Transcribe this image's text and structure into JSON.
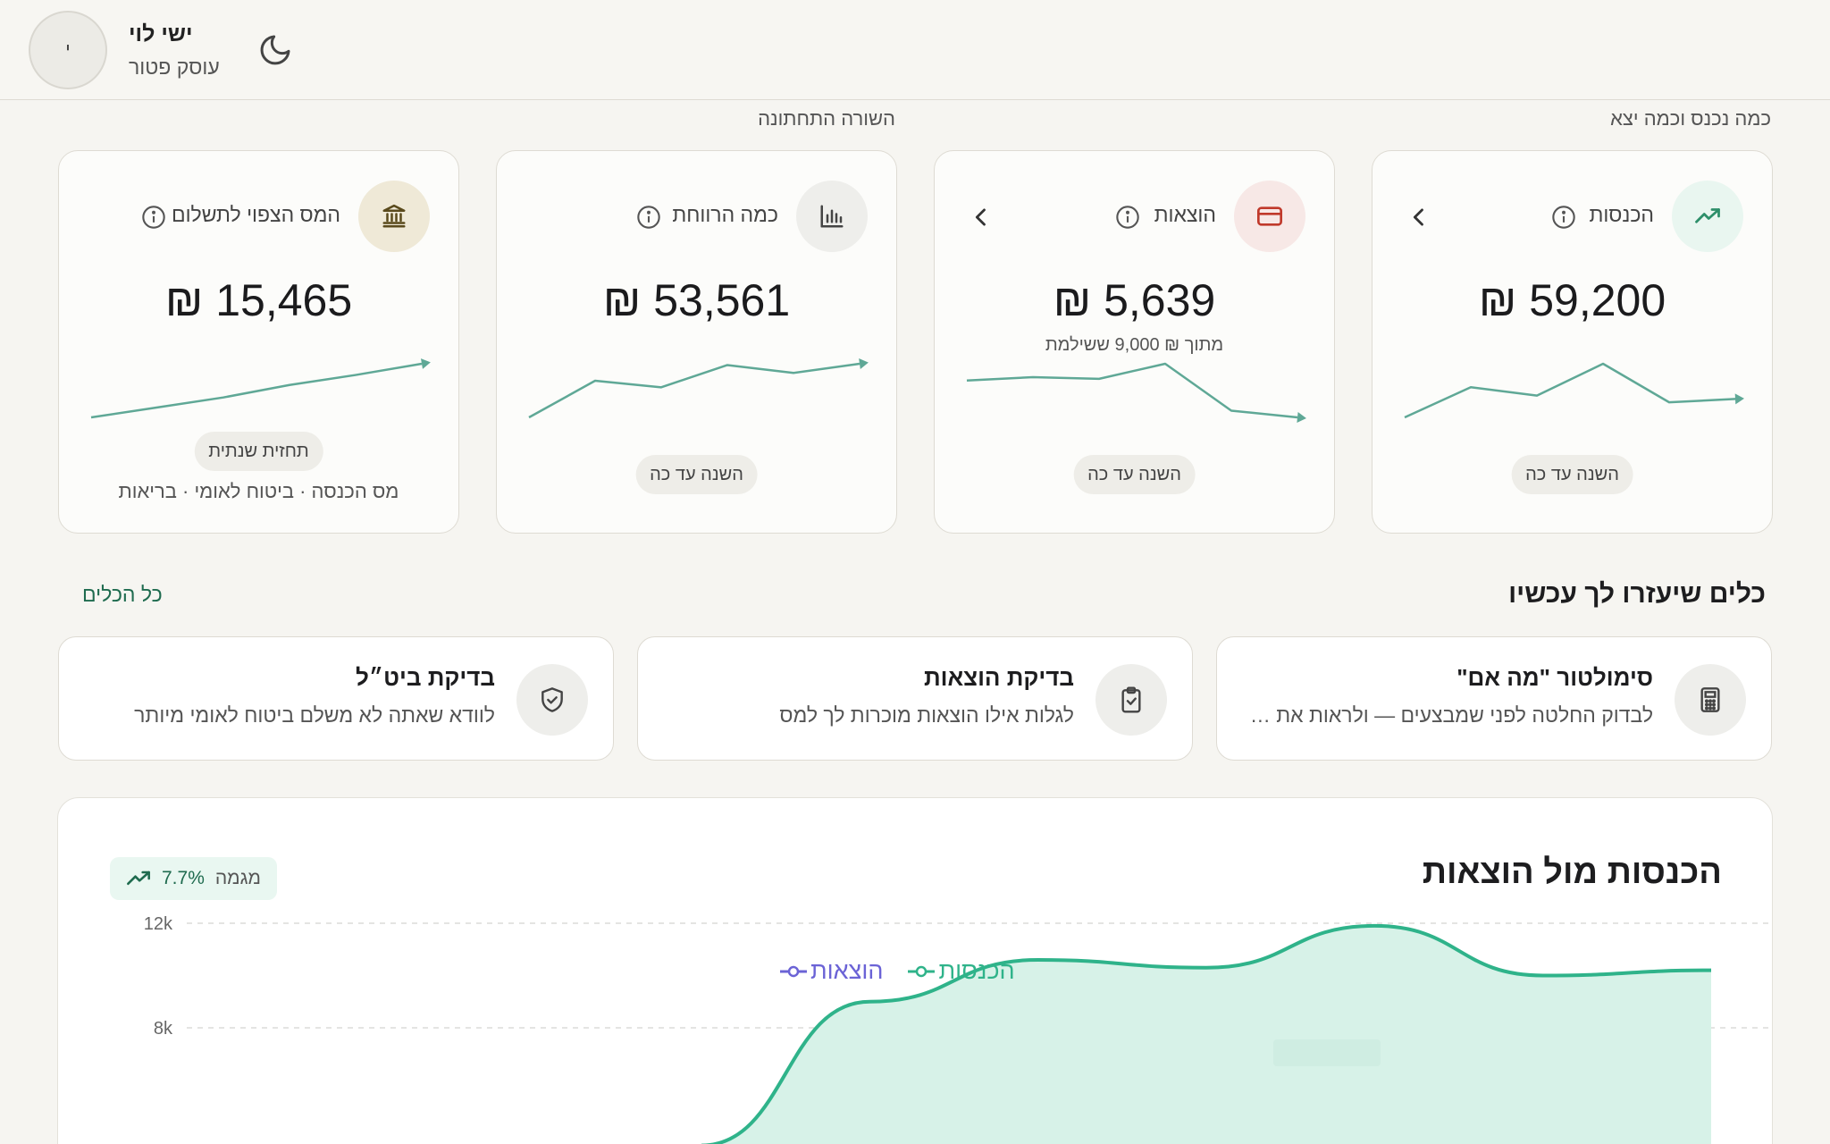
{
  "header": {
    "avatar_initial": "י",
    "user_name": "ישי לוי",
    "user_role": "עוסק פטור",
    "theme_icon": "moon-icon"
  },
  "sections": {
    "income_expense_label": "כמה נכנס וכמה יצא",
    "bottom_line_label": "השורה התחתונה"
  },
  "cards": {
    "income": {
      "title": "הכנסות",
      "amount": "59,200 ₪",
      "period": "השנה עד כה",
      "icon": "trending-up-icon",
      "color": "#2d8f6a",
      "spark": [
        2,
        20,
        15,
        34,
        11,
        13
      ]
    },
    "expenses": {
      "title": "הוצאות",
      "amount": "5,639 ₪",
      "sub": "מתוך ₪ 9,000 ששילמת",
      "period": "השנה עד כה",
      "icon": "credit-card-icon",
      "color": "#c0392b",
      "spark": [
        30,
        32,
        31,
        40,
        12,
        8
      ]
    },
    "profit": {
      "title": "כמה הרווחת",
      "amount": "53,561 ₪",
      "period": "השנה עד כה",
      "icon": "bar-chart-icon",
      "spark": [
        2,
        30,
        25,
        42,
        36,
        43
      ]
    },
    "tax": {
      "title": "המס הצפוי לתשלום",
      "amount": "15,465 ₪",
      "period": "תחזית שנתית",
      "note": "מס הכנסה · ביטוח לאומי · בריאות",
      "icon": "bank-icon",
      "spark": [
        2,
        10,
        18,
        28,
        36,
        45
      ]
    }
  },
  "tools": {
    "title": "כלים שיעזרו לך עכשיו",
    "all_link": "כל הכלים",
    "items": [
      {
        "title": "סימולטור \"מה אם\"",
        "desc": "לבדוק החלטה לפני שמבצעים — ולראות את ה...",
        "icon": "calculator-icon"
      },
      {
        "title": "בדיקת הוצאות",
        "desc": "לגלות אילו הוצאות מוכרות לך למס",
        "icon": "clipboard-check-icon"
      },
      {
        "title": "בדיקת ביט״ל",
        "desc": "לוודא שאתה לא משלם ביטוח לאומי מיותר",
        "icon": "shield-check-icon"
      }
    ]
  },
  "chart_section": {
    "title": "הכנסות מול הוצאות",
    "trend_value": "7.7%",
    "trend_label": "מגמה",
    "trend_icon": "trending-up-icon"
  },
  "chart_data": {
    "type": "area",
    "series": [
      {
        "name": "הכנסות",
        "color": "#2fb38a",
        "values": [
          3500,
          9000,
          10600,
          10300,
          11900,
          10000,
          10200
        ]
      },
      {
        "name": "הוצאות",
        "color": "#6b63d6",
        "values": []
      }
    ],
    "y_ticks": [
      "12k",
      "8k"
    ],
    "ylim": [
      0,
      13500
    ],
    "grid": true,
    "legend_position": "top-center"
  },
  "colors": {
    "accent_green": "#2fb38a",
    "accent_purple": "#6b63d6",
    "background": "#f6f5f1"
  }
}
